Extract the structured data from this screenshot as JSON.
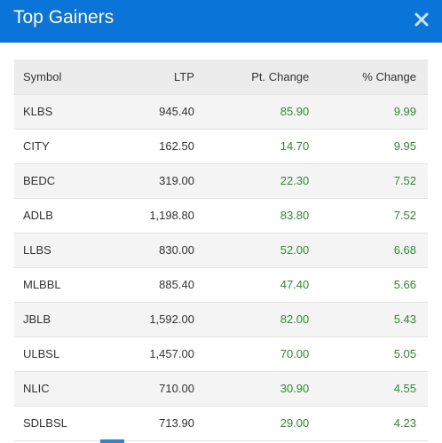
{
  "header": {
    "title": "Top Gainers",
    "close_icon": "close-icon",
    "background": "#0a74d8"
  },
  "table": {
    "columns": [
      "Symbol",
      "LTP",
      "Pt. Change",
      "% Change"
    ],
    "rows": [
      {
        "symbol": "KLBS",
        "ltp": "945.40",
        "pt_change": "85.90",
        "pct_change": "9.99"
      },
      {
        "symbol": "CITY",
        "ltp": "162.50",
        "pt_change": "14.70",
        "pct_change": "9.95"
      },
      {
        "symbol": "BEDC",
        "ltp": "319.00",
        "pt_change": "22.30",
        "pct_change": "7.52"
      },
      {
        "symbol": "ADLB",
        "ltp": "1,198.80",
        "pt_change": "83.80",
        "pct_change": "7.52"
      },
      {
        "symbol": "LLBS",
        "ltp": "830.00",
        "pt_change": "52.00",
        "pct_change": "6.68"
      },
      {
        "symbol": "MLBBL",
        "ltp": "885.40",
        "pt_change": "47.40",
        "pct_change": "5.66"
      },
      {
        "symbol": "JBLB",
        "ltp": "1,592.00",
        "pt_change": "82.00",
        "pct_change": "5.43"
      },
      {
        "symbol": "ULBSL",
        "ltp": "1,457.00",
        "pt_change": "70.00",
        "pct_change": "5.05"
      },
      {
        "symbol": "NLIC",
        "ltp": "710.00",
        "pt_change": "30.90",
        "pct_change": "4.55"
      },
      {
        "symbol": "SDLBSL",
        "ltp": "713.90",
        "pt_change": "29.00",
        "pct_change": "4.23"
      }
    ],
    "gain_color": "#2e8b2e"
  }
}
